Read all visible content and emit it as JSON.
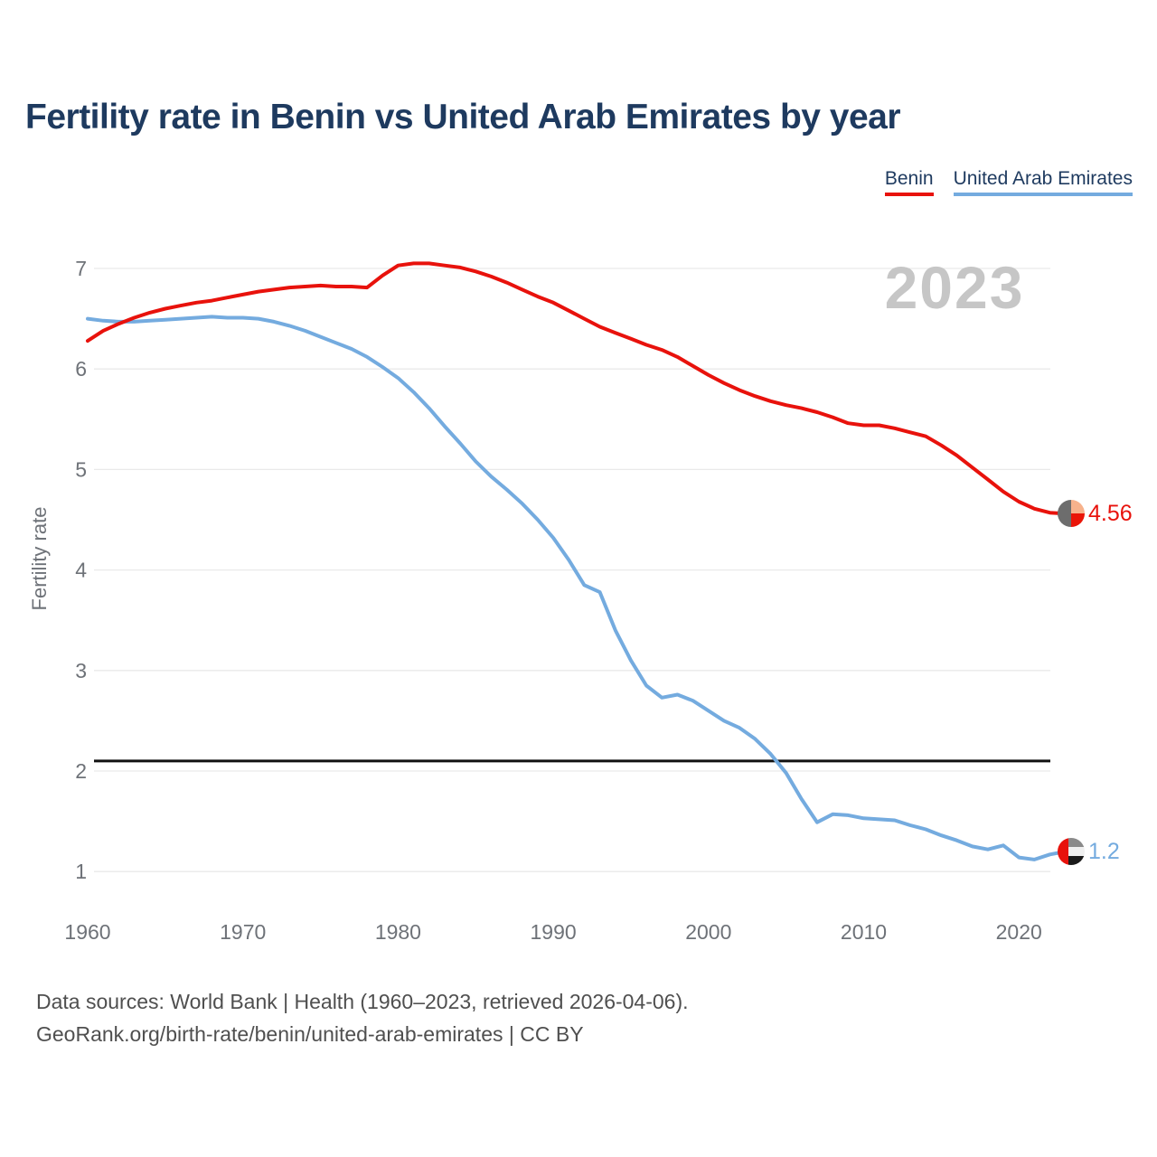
{
  "header": {
    "title": "Fertility rate in Benin vs United Arab Emirates by year",
    "legend": [
      {
        "label": "Benin",
        "color": "#e8120c"
      },
      {
        "label": "United Arab Emirates",
        "color": "#74abdf"
      }
    ]
  },
  "watermark": "2023",
  "chart_data": {
    "type": "line",
    "title": "Fertility rate in Benin vs United Arab Emirates by year",
    "xlabel": "",
    "ylabel": "Fertility rate",
    "ylim": [
      1,
      7
    ],
    "xlim": [
      1960,
      2023
    ],
    "grid": "horizontal",
    "legend_position": "top-right",
    "yticks": [
      1,
      2,
      3,
      4,
      5,
      6,
      7
    ],
    "xticks": [
      1960,
      1970,
      1980,
      1990,
      2000,
      2010,
      2020
    ],
    "reference_line": {
      "value": 2.1,
      "color": "#111111"
    },
    "x": [
      1960,
      1961,
      1962,
      1963,
      1964,
      1965,
      1966,
      1967,
      1968,
      1969,
      1970,
      1971,
      1972,
      1973,
      1974,
      1975,
      1976,
      1977,
      1978,
      1979,
      1980,
      1981,
      1982,
      1983,
      1984,
      1985,
      1986,
      1987,
      1988,
      1989,
      1990,
      1991,
      1992,
      1993,
      1994,
      1995,
      1996,
      1997,
      1998,
      1999,
      2000,
      2001,
      2002,
      2003,
      2004,
      2005,
      2006,
      2007,
      2008,
      2009,
      2010,
      2011,
      2012,
      2013,
      2014,
      2015,
      2016,
      2017,
      2018,
      2019,
      2020,
      2021,
      2022,
      2023
    ],
    "series": [
      {
        "name": "Benin",
        "color": "#e8120c",
        "end_label": "4.56",
        "values": [
          6.28,
          6.38,
          6.45,
          6.51,
          6.56,
          6.6,
          6.63,
          6.66,
          6.68,
          6.71,
          6.74,
          6.77,
          6.79,
          6.81,
          6.82,
          6.83,
          6.82,
          6.82,
          6.81,
          6.93,
          7.03,
          7.05,
          7.05,
          7.03,
          7.01,
          6.97,
          6.92,
          6.86,
          6.79,
          6.72,
          6.66,
          6.58,
          6.5,
          6.42,
          6.36,
          6.3,
          6.24,
          6.19,
          6.12,
          6.03,
          5.94,
          5.86,
          5.79,
          5.73,
          5.68,
          5.64,
          5.61,
          5.57,
          5.52,
          5.46,
          5.44,
          5.44,
          5.41,
          5.37,
          5.33,
          5.24,
          5.14,
          5.02,
          4.9,
          4.78,
          4.68,
          4.61,
          4.57,
          4.56
        ]
      },
      {
        "name": "United Arab Emirates",
        "color": "#74abdf",
        "end_label": "1.2",
        "values": [
          6.5,
          6.48,
          6.47,
          6.47,
          6.48,
          6.49,
          6.5,
          6.51,
          6.52,
          6.51,
          6.51,
          6.5,
          6.47,
          6.43,
          6.38,
          6.32,
          6.26,
          6.2,
          6.12,
          6.02,
          5.91,
          5.77,
          5.61,
          5.43,
          5.26,
          5.08,
          4.93,
          4.8,
          4.66,
          4.5,
          4.32,
          4.1,
          3.85,
          3.78,
          3.4,
          3.1,
          2.85,
          2.73,
          2.76,
          2.7,
          2.6,
          2.5,
          2.43,
          2.32,
          2.17,
          1.98,
          1.72,
          1.49,
          1.57,
          1.56,
          1.53,
          1.52,
          1.51,
          1.46,
          1.42,
          1.36,
          1.31,
          1.25,
          1.22,
          1.26,
          1.14,
          1.12,
          1.17,
          1.2
        ]
      }
    ]
  },
  "end_markers": {
    "benin_flag_icon": {
      "left_half": "#6d6d6d",
      "top_right": "#f7b28c",
      "bottom_right": "#ea1508"
    },
    "uae_flag_icon": {
      "left_band": "#e8120c",
      "top_band": "#8a8a8a",
      "middle_band": "#f0f0f0",
      "bottom_band": "#1a1a1a"
    }
  },
  "footer": {
    "line1": "Data sources: World Bank | Health (1960–2023, retrieved 2026-04-06).",
    "line2": "GeoRank.org/birth-rate/benin/united-arab-emirates | CC BY"
  },
  "colors": {
    "title": "#1e3a5f",
    "axis_text": "#6e7278",
    "gridline": "#e9e9e9",
    "watermark": "#c6c6c6",
    "footer_text": "#4f4f4f",
    "background": "#ffffff",
    "benin": "#e8120c",
    "uae": "#74abdf",
    "reference_line": "#111111"
  }
}
